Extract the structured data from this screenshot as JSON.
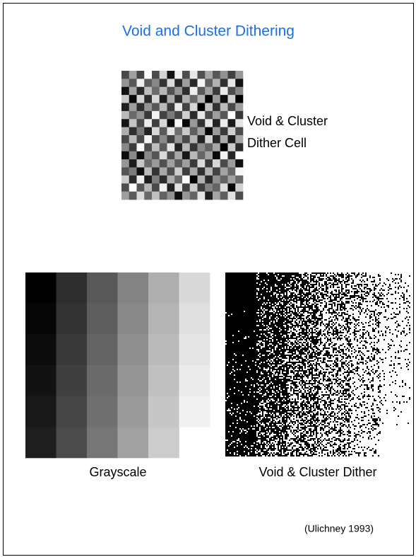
{
  "title": "Void and Cluster Dithering",
  "dither_cell": {
    "label": [
      "Void & Cluster",
      "Dither Cell"
    ]
  },
  "grayscale": {
    "caption": "Grayscale"
  },
  "dither": {
    "caption": "Void & Cluster Dither"
  },
  "citation": "(Ulichney 1993)"
}
